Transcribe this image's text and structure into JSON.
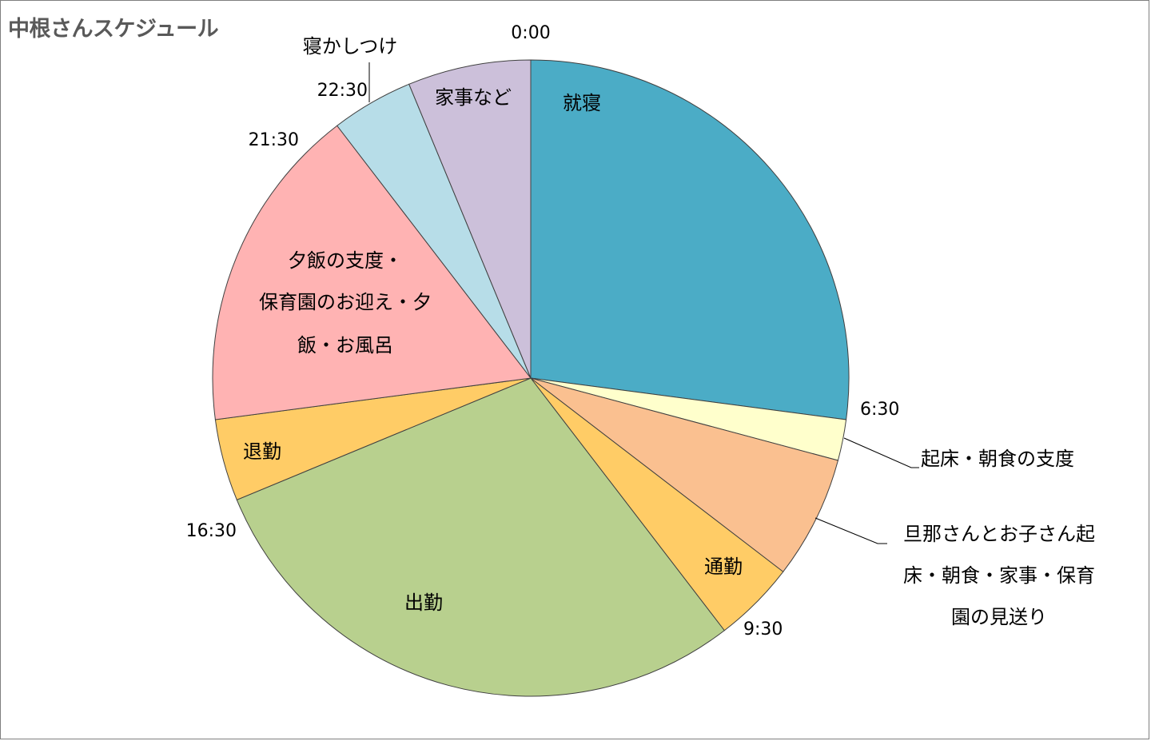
{
  "chart_data": {
    "type": "pie",
    "title": "中根さんスケジュール",
    "unit": "hours",
    "slices": [
      {
        "label": "就寝",
        "start": "0:00",
        "end": "6:30",
        "value": 6.5,
        "color": "#4bacc6"
      },
      {
        "label": "起床・朝食の支度",
        "start": "6:30",
        "end": "7:00",
        "value": 0.5,
        "color": "#ffffcc"
      },
      {
        "label": "旦那さんとお子さん起床・朝食・家事・保育園の見送り",
        "start": "7:00",
        "end": "8:30",
        "value": 1.5,
        "color": "#fac090"
      },
      {
        "label": "通勤",
        "start": "8:30",
        "end": "9:30",
        "value": 1.0,
        "color": "#ffcc66"
      },
      {
        "label": "出勤",
        "start": "9:30",
        "end": "16:30",
        "value": 7.0,
        "color": "#b8d08e"
      },
      {
        "label": "退勤",
        "start": "16:30",
        "end": "17:30",
        "value": 1.0,
        "color": "#ffcc66"
      },
      {
        "label": "夕飯の支度・保育園のお迎え・夕飯・お風呂",
        "start": "17:30",
        "end": "21:30",
        "value": 4.0,
        "color": "#ffb3b3"
      },
      {
        "label": "寝かしつけ",
        "start": "21:30",
        "end": "22:30",
        "value": 1.0,
        "color": "#b7dde8"
      },
      {
        "label": "家事など",
        "start": "22:30",
        "end": "24:00",
        "value": 1.5,
        "color": "#ccc0da"
      }
    ],
    "time_ticks": [
      "0:00",
      "6:30",
      "9:30",
      "16:30",
      "21:30",
      "22:30"
    ],
    "legend": "none"
  },
  "labels": {
    "sleep": "就寝",
    "wake": "起床・朝食の支度",
    "morning_lines": [
      "旦那さんとお子さん起",
      "床・朝食・家事・保育",
      "園の見送り"
    ],
    "commute": "通勤",
    "work": "出勤",
    "leave": "退勤",
    "evening_lines": [
      "夕飯の支度・",
      "保育園のお迎え・夕",
      "飯・お風呂"
    ],
    "bedtime": "寝かしつけ",
    "chores": "家事など"
  }
}
